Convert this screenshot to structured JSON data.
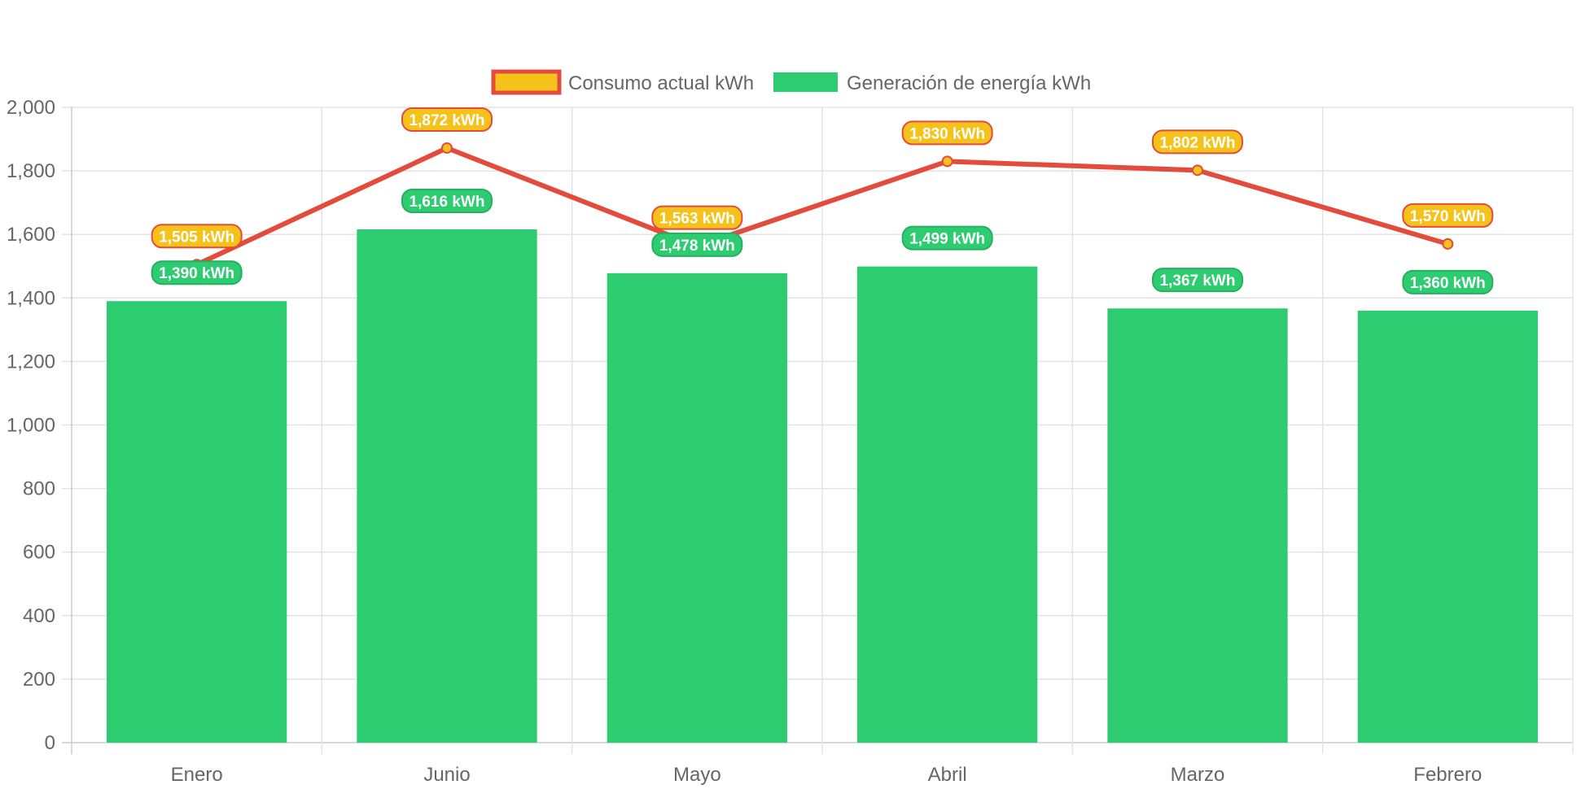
{
  "chart_data": {
    "type": "bar",
    "title": "",
    "xlabel": "",
    "ylabel": "",
    "categories": [
      "Enero",
      "Junio",
      "Mayo",
      "Abril",
      "Marzo",
      "Febrero"
    ],
    "ylim": [
      0,
      2000
    ],
    "yticks": [
      "0",
      "200",
      "400",
      "600",
      "800",
      "1,000",
      "1,200",
      "1,400",
      "1,600",
      "1,800",
      "2,000"
    ],
    "grid": true,
    "legend_position": "top",
    "series": [
      {
        "name": "Consumo actual kWh",
        "type": "line",
        "values": [
          1505,
          1872,
          1563,
          1830,
          1802,
          1570
        ],
        "labels": [
          "1,505 kWh",
          "1,872 kWh",
          "1,563 kWh",
          "1,830 kWh",
          "1,802 kWh",
          "1,570 kWh"
        ],
        "line_color": "#e34b3c",
        "fill_color": "#f5c21b"
      },
      {
        "name": "Generación de energía kWh",
        "type": "bar",
        "values": [
          1390,
          1616,
          1478,
          1499,
          1367,
          1360
        ],
        "labels": [
          "1,390 kWh",
          "1,616 kWh",
          "1,478 kWh",
          "1,499 kWh",
          "1,367 kWh",
          "1,360 kWh"
        ],
        "fill_color": "#2ecc71",
        "border_color": "#27ae60"
      }
    ]
  }
}
